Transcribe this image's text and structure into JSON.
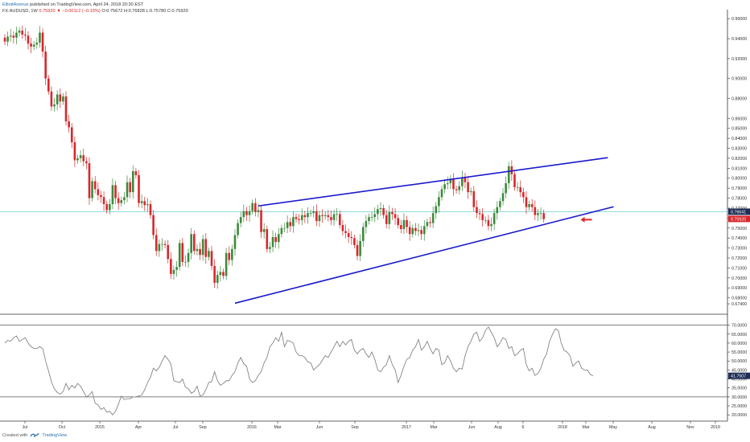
{
  "header": {
    "author": "ElliottAvenue",
    "published_text": "published on TradingView.com, April 24, 2018 20:30 EST",
    "symbol": "FX:AUDUSD, 1W",
    "last": "0.75920",
    "change": "−0.00112 (−0.15%)",
    "o": "O:0.75672",
    "h": "H:0.76828",
    "l": "L:0.75780",
    "c": "C:0.75920"
  },
  "footer": {
    "created_with": "Created with",
    "brand": "TradingView"
  },
  "colors": {
    "up": "#3c8a3c",
    "down": "#d9262b",
    "trendline": "#1a1acc",
    "rsi": "#777777",
    "badge_price": "#d9262b",
    "badge_hline": "#1f2d55",
    "arrow": "#e0262b",
    "hline": "#7fd6d6"
  },
  "chart_data": [
    {
      "type": "candlestick",
      "title": "FX:AUDUSD, 1W",
      "ylim": [
        0.666,
        0.961
      ],
      "y_ticks": [
        "0.96000",
        "0.94000",
        "0.92000",
        "0.90000",
        "0.88000",
        "0.86000",
        "0.85000",
        "0.84000",
        "0.83000",
        "0.82000",
        "0.81000",
        "0.80000",
        "0.79000",
        "0.78000",
        "0.77000",
        "0.76000",
        "0.75000",
        "0.74000",
        "0.73000",
        "0.72000",
        "0.71000",
        "0.70000",
        "0.69000",
        "0.68000",
        "0.67400"
      ],
      "x_ticks": [
        "Jul",
        "Oct",
        "2015",
        "Apr",
        "Jul",
        "Sep",
        "2016",
        "Mar",
        "Jun",
        "Sep",
        "2017",
        "Mar",
        "Jun",
        "Aug",
        "6",
        "2018",
        "Mar",
        "May",
        "Aug",
        "Nov",
        "2019"
      ],
      "close": [
        0.937,
        0.942,
        0.943,
        0.941,
        0.946,
        0.948,
        0.944,
        0.943,
        0.935,
        0.932,
        0.934,
        0.936,
        0.946,
        0.927,
        0.9,
        0.887,
        0.872,
        0.874,
        0.884,
        0.877,
        0.882,
        0.857,
        0.851,
        0.836,
        0.818,
        0.82,
        0.823,
        0.817,
        0.815,
        0.78,
        0.797,
        0.789,
        0.783,
        0.781,
        0.774,
        0.768,
        0.774,
        0.793,
        0.78,
        0.775,
        0.778,
        0.781,
        0.796,
        0.786,
        0.807,
        0.803,
        0.775,
        0.777,
        0.773,
        0.774,
        0.763,
        0.743,
        0.727,
        0.734,
        0.734,
        0.733,
        0.719,
        0.704,
        0.708,
        0.711,
        0.735,
        0.716,
        0.716,
        0.725,
        0.744,
        0.727,
        0.729,
        0.723,
        0.739,
        0.721,
        0.727,
        0.712,
        0.695,
        0.703,
        0.706,
        0.702,
        0.725,
        0.718,
        0.729,
        0.743,
        0.755,
        0.761,
        0.767,
        0.763,
        0.767,
        0.775,
        0.766,
        0.768,
        0.746,
        0.749,
        0.729,
        0.731,
        0.741,
        0.736,
        0.744,
        0.75,
        0.75,
        0.756,
        0.752,
        0.761,
        0.759,
        0.758,
        0.763,
        0.761,
        0.765,
        0.765,
        0.767,
        0.757,
        0.763,
        0.762,
        0.763,
        0.761,
        0.758,
        0.764,
        0.764,
        0.753,
        0.747,
        0.745,
        0.741,
        0.74,
        0.733,
        0.722,
        0.737,
        0.751,
        0.757,
        0.761,
        0.761,
        0.764,
        0.769,
        0.77,
        0.763,
        0.754,
        0.766,
        0.764,
        0.76,
        0.753,
        0.749,
        0.758,
        0.751,
        0.744,
        0.75,
        0.747,
        0.748,
        0.744,
        0.752,
        0.756,
        0.755,
        0.765,
        0.772,
        0.781,
        0.789,
        0.794,
        0.795,
        0.799,
        0.789,
        0.788,
        0.792,
        0.801,
        0.796,
        0.786,
        0.787,
        0.771,
        0.765,
        0.764,
        0.758,
        0.758,
        0.752,
        0.754,
        0.765,
        0.771,
        0.777,
        0.785,
        0.795,
        0.812,
        0.804,
        0.791,
        0.791,
        0.786,
        0.781,
        0.771,
        0.774,
        0.771,
        0.763,
        0.765,
        0.765,
        0.759
      ],
      "trendlines": [
        {
          "name": "upper",
          "from_index": 87,
          "from_price": 0.7722,
          "to_index": 207,
          "to_price": 0.8206
        },
        {
          "name": "lower",
          "from_index": 79,
          "from_price": 0.6746,
          "to_index": 209,
          "to_price": 0.7714
        }
      ],
      "horizontal_line": 0.7664,
      "price_badges": [
        {
          "label": "0.76641",
          "price": 0.7664,
          "style": "hline"
        },
        {
          "label": "0.75920",
          "price": 0.7592,
          "style": "price"
        }
      ],
      "arrow_at": {
        "index": 196,
        "price": 0.7592,
        "direction": "left"
      }
    },
    {
      "type": "line",
      "title": "RSI",
      "ylim": [
        18.3,
        73.4
      ],
      "y_ticks": [
        "70.0000",
        "65.0000",
        "60.0000",
        "55.0000",
        "50.0000",
        "45.0000",
        "40.0000",
        "35.0000",
        "30.0000",
        "25.0000",
        "20.0000"
      ],
      "levels": [
        70,
        30
      ],
      "last_label": "41.7507",
      "values": [
        60,
        61.5,
        61,
        63,
        64,
        61,
        62,
        63,
        60,
        58,
        57,
        57,
        58,
        57,
        50,
        44.5,
        38.5,
        34.5,
        32.5,
        31.5,
        33,
        37.5,
        34,
        36.5,
        35,
        37.5,
        36,
        33,
        30,
        31,
        33,
        26.5,
        25.5,
        23,
        24,
        21.5,
        22,
        20,
        22,
        26,
        30.5,
        28.5,
        29,
        29,
        30,
        30,
        30.5,
        31,
        34,
        38,
        41,
        46,
        44.5,
        46.5,
        50,
        53,
        51,
        48.5,
        39,
        38.5,
        38,
        40,
        35.5,
        34.5,
        32,
        33,
        36,
        30.5,
        31,
        34,
        38,
        38.5,
        44,
        39,
        36.5,
        37.5,
        39,
        39,
        42,
        44,
        49,
        52,
        48.5,
        47,
        40,
        38,
        39,
        42,
        44,
        49,
        52,
        58,
        60,
        63,
        61,
        66,
        58,
        61.5,
        61,
        60,
        55,
        53,
        53,
        52,
        49.5,
        49,
        45,
        46.5,
        48,
        50.5,
        53,
        52,
        55,
        58,
        61,
        58,
        61,
        59,
        61,
        62,
        56,
        54,
        56,
        57,
        54,
        52,
        55,
        51,
        45,
        44,
        46.5,
        48,
        53,
        48,
        45,
        38,
        42,
        47,
        51,
        52,
        56,
        58,
        62,
        56,
        58,
        61,
        57,
        54,
        57,
        56,
        48,
        49,
        53,
        50,
        46,
        44,
        46,
        45.5,
        53,
        58,
        61,
        65,
        66,
        61,
        63,
        67,
        69,
        66,
        63,
        58,
        60,
        63,
        62,
        57,
        58,
        53,
        54,
        56,
        57,
        48,
        44.5,
        46,
        42,
        43,
        46,
        51,
        54,
        61,
        65,
        68,
        67,
        60,
        56,
        55,
        53,
        47,
        49,
        50,
        46,
        45,
        45,
        42.5,
        41.75
      ]
    }
  ]
}
